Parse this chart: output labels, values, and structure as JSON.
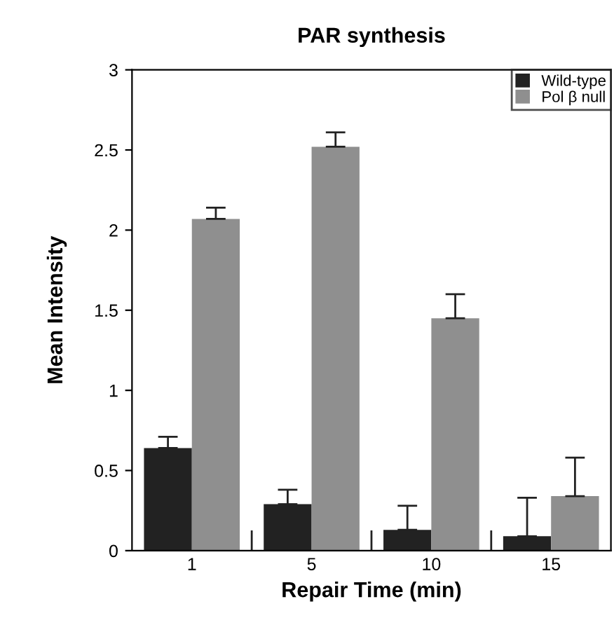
{
  "chart_data": {
    "type": "bar",
    "title": "PAR synthesis",
    "xlabel": "Repair Time (min)",
    "ylabel": "Mean Intensity",
    "categories": [
      "1",
      "5",
      "10",
      "15"
    ],
    "series": [
      {
        "name": "Wild-type",
        "color": "#222222",
        "values": [
          0.64,
          0.29,
          0.13,
          0.09
        ],
        "errors": [
          [
            0.64,
            0.71
          ],
          [
            0.29,
            0.38
          ],
          [
            0.13,
            0.28
          ],
          [
            0.09,
            0.33
          ]
        ]
      },
      {
        "name": "Pol β null",
        "color": "#8f8f8f",
        "values": [
          2.07,
          2.52,
          1.45,
          0.34
        ],
        "errors": [
          [
            2.07,
            2.14
          ],
          [
            2.52,
            2.61
          ],
          [
            1.45,
            1.6
          ],
          [
            0.34,
            0.58
          ]
        ]
      }
    ],
    "ylim": [
      0,
      3
    ],
    "yticks": [
      0,
      0.5,
      1,
      1.5,
      2,
      2.5,
      3
    ],
    "grid": false,
    "legend": "top right"
  }
}
